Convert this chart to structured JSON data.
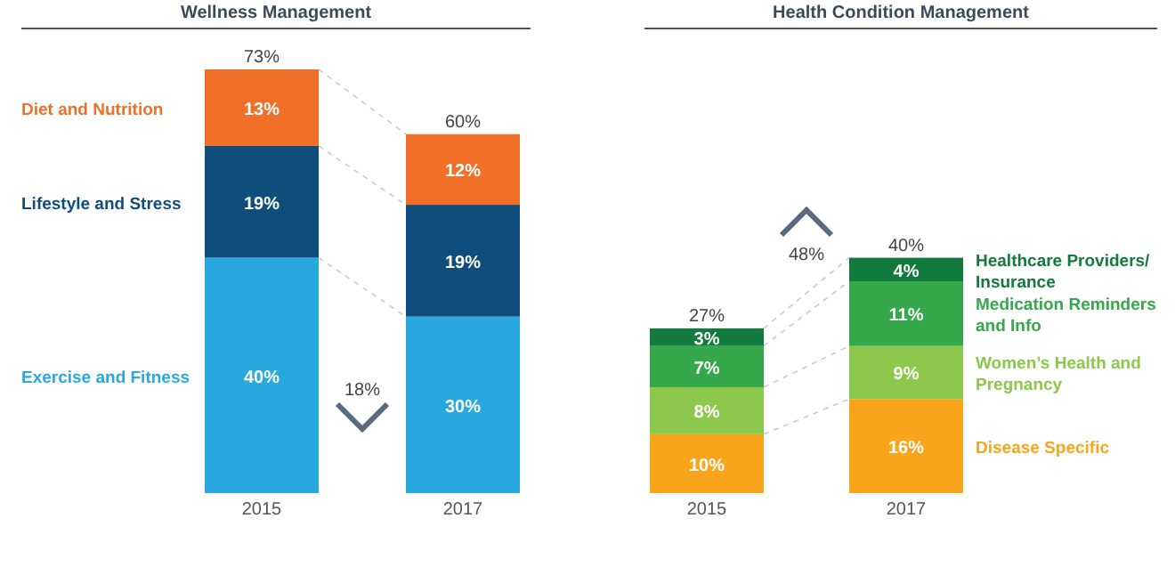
{
  "chart_data": [
    {
      "type": "bar",
      "title": "Wellness Management",
      "stacked": true,
      "legend": "left",
      "categories": [
        "2015",
        "2017"
      ],
      "series": [
        {
          "name": "Exercise and Fitness",
          "color": "#29a8e0",
          "values": [
            40,
            30
          ],
          "value_labels": [
            "40%",
            "30%"
          ]
        },
        {
          "name": "Lifestyle and Stress",
          "color": "#0e4d7c",
          "values": [
            19,
            19
          ],
          "value_labels": [
            "19%",
            "19%"
          ]
        },
        {
          "name": "Diet and Nutrition",
          "color": "#f07028",
          "values": [
            13,
            12
          ],
          "value_labels": [
            "13%",
            "12%"
          ]
        }
      ],
      "totals": [
        "73%",
        "60%"
      ],
      "annotations": [
        "18%"
      ]
    },
    {
      "type": "bar",
      "title": "Health Condition Management",
      "stacked": true,
      "legend": "right",
      "categories": [
        "2015",
        "2017"
      ],
      "series": [
        {
          "name": "Disease Specific",
          "color": "#f9a51c",
          "values": [
            10,
            16
          ],
          "value_labels": [
            "10%",
            "16%"
          ]
        },
        {
          "name": "Women’s Health and Pregnancy",
          "color": "#8cc84b",
          "values": [
            8,
            9
          ],
          "value_labels": [
            "8%",
            "9%"
          ]
        },
        {
          "name": "Medication Reminders and Info",
          "color": "#34a84a",
          "values": [
            7,
            11
          ],
          "value_labels": [
            "7%",
            "11%"
          ]
        },
        {
          "name": "Healthcare Providers/ Insurance",
          "color": "#117a3c",
          "values": [
            3,
            4
          ],
          "value_labels": [
            "3%",
            "4%"
          ]
        }
      ],
      "totals": [
        "27%",
        "40%"
      ],
      "annotations": [
        "48%"
      ]
    }
  ]
}
